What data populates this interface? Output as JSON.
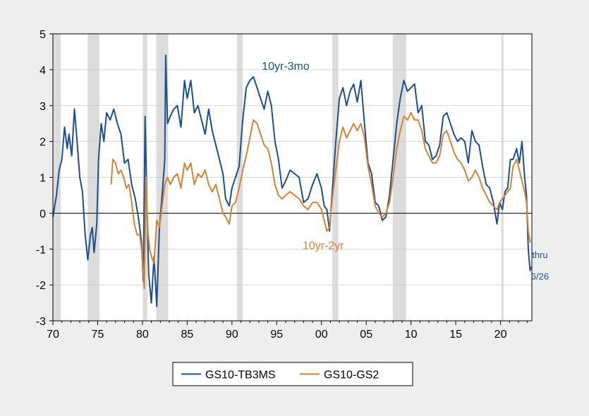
{
  "chart_data": {
    "type": "line",
    "xlim": [
      1970,
      2023.5
    ],
    "ylim": [
      -3,
      5
    ],
    "y_ticks": [
      -3,
      -2,
      -1,
      0,
      1,
      2,
      3,
      4,
      5
    ],
    "y_tick_labels": [
      "-3",
      "-2",
      "-1",
      "0",
      "1",
      "2",
      "3",
      "4",
      "5"
    ],
    "x_ticks": [
      1970,
      1975,
      1980,
      1985,
      1990,
      1995,
      2000,
      2005,
      2010,
      2015,
      2020
    ],
    "x_tick_labels": [
      "70",
      "75",
      "80",
      "85",
      "90",
      "95",
      "00",
      "05",
      "10",
      "15",
      "20"
    ],
    "grid": true,
    "legend_position": "bottom-center",
    "recessions": [
      [
        1969.92,
        1970.88
      ],
      [
        1973.88,
        1975.21
      ],
      [
        1980.04,
        1980.54
      ],
      [
        1981.54,
        1982.88
      ],
      [
        1990.54,
        1991.21
      ],
      [
        2001.21,
        2001.88
      ],
      [
        2007.96,
        2009.46
      ],
      [
        2020.08,
        2020.33
      ]
    ],
    "series": [
      {
        "name": "GS10-TB3MS",
        "color": "#1f4e8c",
        "x": [
          1970.0,
          1970.4,
          1970.7,
          1971.0,
          1971.3,
          1971.6,
          1971.8,
          1972.1,
          1972.4,
          1972.7,
          1973.0,
          1973.3,
          1973.6,
          1973.9,
          1974.2,
          1974.4,
          1974.6,
          1974.9,
          1975.1,
          1975.4,
          1975.7,
          1976.0,
          1976.4,
          1976.8,
          1977.2,
          1977.6,
          1978.0,
          1978.4,
          1978.8,
          1979.2,
          1979.6,
          1979.9,
          1980.1,
          1980.3,
          1980.5,
          1980.7,
          1981.0,
          1981.3,
          1981.6,
          1981.9,
          1982.2,
          1982.5,
          1982.6,
          1982.8,
          1983.1,
          1983.5,
          1983.9,
          1984.3,
          1984.7,
          1985.0,
          1985.4,
          1985.8,
          1986.2,
          1986.6,
          1987.0,
          1987.4,
          1987.8,
          1988.2,
          1988.6,
          1989.0,
          1989.3,
          1989.7,
          1990.0,
          1990.4,
          1990.8,
          1991.2,
          1991.6,
          1992.0,
          1992.4,
          1992.8,
          1993.2,
          1993.6,
          1994.0,
          1994.4,
          1994.8,
          1995.2,
          1995.6,
          1996.0,
          1996.5,
          1997.0,
          1997.5,
          1998.0,
          1998.5,
          1999.0,
          1999.5,
          2000.0,
          2000.3,
          2000.6,
          2000.9,
          2001.2,
          2001.6,
          2002.0,
          2002.4,
          2002.8,
          2003.2,
          2003.6,
          2004.0,
          2004.4,
          2004.8,
          2005.2,
          2005.6,
          2006.0,
          2006.4,
          2006.8,
          2007.2,
          2007.6,
          2008.0,
          2008.4,
          2008.8,
          2009.2,
          2009.6,
          2010.0,
          2010.4,
          2010.8,
          2011.2,
          2011.6,
          2012.0,
          2012.4,
          2012.8,
          2013.2,
          2013.6,
          2014.0,
          2014.4,
          2014.8,
          2015.2,
          2015.6,
          2016.0,
          2016.4,
          2016.8,
          2017.2,
          2017.6,
          2018.0,
          2018.4,
          2018.8,
          2019.2,
          2019.6,
          2019.9,
          2020.2,
          2020.5,
          2020.8,
          2021.1,
          2021.4,
          2021.8,
          2022.1,
          2022.4,
          2022.7,
          2022.9,
          2023.1,
          2023.3,
          2023.4
        ],
        "values": [
          -0.1,
          0.5,
          1.2,
          1.5,
          2.4,
          1.8,
          2.2,
          1.6,
          2.9,
          2.0,
          1.0,
          0.6,
          -0.6,
          -1.3,
          -0.6,
          -0.4,
          -1.1,
          -0.3,
          1.5,
          2.5,
          2.0,
          2.8,
          2.6,
          2.9,
          2.5,
          2.2,
          1.4,
          1.5,
          0.8,
          0.4,
          -0.2,
          -0.8,
          -1.9,
          2.7,
          0.2,
          -1.7,
          -2.5,
          -1.2,
          -2.6,
          -0.4,
          0.5,
          1.5,
          4.4,
          2.5,
          2.7,
          2.9,
          3.0,
          2.4,
          3.7,
          3.2,
          3.7,
          2.8,
          3.0,
          2.6,
          2.2,
          2.9,
          2.3,
          1.9,
          1.5,
          1.1,
          0.4,
          0.2,
          0.7,
          1.0,
          1.3,
          2.6,
          3.5,
          3.7,
          3.8,
          3.5,
          3.2,
          2.9,
          3.4,
          3.0,
          2.0,
          1.5,
          0.7,
          0.9,
          1.2,
          1.1,
          1.0,
          0.3,
          0.4,
          0.8,
          1.1,
          0.7,
          0.2,
          0.1,
          -0.5,
          0.6,
          2.0,
          3.2,
          3.5,
          3.0,
          3.4,
          3.6,
          3.1,
          3.7,
          2.5,
          1.4,
          1.1,
          0.3,
          0.2,
          -0.2,
          -0.1,
          0.5,
          1.5,
          2.5,
          3.2,
          3.7,
          3.4,
          3.5,
          3.6,
          2.8,
          3.0,
          2.0,
          1.9,
          1.5,
          1.6,
          1.9,
          2.7,
          2.8,
          2.5,
          2.2,
          2.0,
          2.1,
          2.0,
          1.4,
          2.3,
          2.0,
          1.9,
          1.3,
          0.8,
          0.7,
          0.3,
          -0.3,
          0.3,
          0.1,
          0.6,
          0.7,
          1.5,
          1.5,
          1.8,
          1.4,
          2.0,
          1.0,
          0.5,
          -1.0,
          -1.6,
          -1.5
        ]
      },
      {
        "name": "GS10-GS2",
        "color": "#d4823a",
        "x": [
          1976.5,
          1976.7,
          1977.0,
          1977.3,
          1977.6,
          1977.9,
          1978.2,
          1978.5,
          1978.8,
          1979.1,
          1979.4,
          1979.7,
          1980.0,
          1980.2,
          1980.4,
          1980.6,
          1980.8,
          1981.0,
          1981.3,
          1981.6,
          1981.9,
          1982.2,
          1982.5,
          1982.8,
          1983.1,
          1983.5,
          1983.9,
          1984.3,
          1984.7,
          1985.0,
          1985.4,
          1985.8,
          1986.2,
          1986.6,
          1987.0,
          1987.4,
          1987.8,
          1988.2,
          1988.6,
          1989.0,
          1989.3,
          1989.7,
          1990.0,
          1990.4,
          1990.8,
          1991.2,
          1991.6,
          1992.0,
          1992.4,
          1992.8,
          1993.2,
          1993.6,
          1994.0,
          1994.4,
          1994.8,
          1995.2,
          1995.6,
          1996.0,
          1996.5,
          1997.0,
          1997.5,
          1998.0,
          1998.5,
          1999.0,
          1999.5,
          2000.0,
          2000.3,
          2000.6,
          2000.9,
          2001.2,
          2001.6,
          2002.0,
          2002.4,
          2002.8,
          2003.2,
          2003.6,
          2004.0,
          2004.4,
          2004.8,
          2005.2,
          2005.6,
          2006.0,
          2006.4,
          2006.8,
          2007.2,
          2007.6,
          2008.0,
          2008.4,
          2008.8,
          2009.2,
          2009.6,
          2010.0,
          2010.4,
          2010.8,
          2011.2,
          2011.6,
          2012.0,
          2012.4,
          2012.8,
          2013.2,
          2013.6,
          2014.0,
          2014.4,
          2014.8,
          2015.2,
          2015.6,
          2016.0,
          2016.4,
          2016.8,
          2017.2,
          2017.6,
          2018.0,
          2018.4,
          2018.8,
          2019.2,
          2019.6,
          2019.9,
          2020.2,
          2020.5,
          2020.8,
          2021.1,
          2021.4,
          2021.8,
          2022.1,
          2022.4,
          2022.7,
          2022.9,
          2023.1,
          2023.3,
          2023.4
        ],
        "values": [
          0.8,
          1.5,
          1.4,
          1.1,
          1.2,
          1.0,
          0.7,
          0.8,
          0.3,
          -0.3,
          -0.6,
          -0.6,
          -1.2,
          -2.1,
          1.0,
          -0.5,
          -1.0,
          -1.2,
          -1.4,
          -0.2,
          -0.4,
          0.2,
          0.8,
          1.0,
          0.8,
          1.0,
          1.1,
          0.7,
          1.4,
          1.2,
          1.4,
          0.8,
          1.1,
          1.0,
          1.2,
          0.8,
          0.6,
          0.8,
          0.4,
          0.0,
          -0.1,
          -0.3,
          0.2,
          0.3,
          0.7,
          1.2,
          1.6,
          2.1,
          2.6,
          2.5,
          2.2,
          1.9,
          1.8,
          1.4,
          0.8,
          0.5,
          0.4,
          0.5,
          0.6,
          0.5,
          0.4,
          0.2,
          0.1,
          0.3,
          0.3,
          0.1,
          -0.2,
          -0.5,
          -0.4,
          0.4,
          1.2,
          2.0,
          2.4,
          2.1,
          2.3,
          2.5,
          2.3,
          2.5,
          2.1,
          1.3,
          0.8,
          0.2,
          0.0,
          -0.1,
          0.0,
          0.3,
          1.0,
          1.8,
          2.3,
          2.7,
          2.6,
          2.8,
          2.6,
          2.6,
          2.3,
          1.8,
          1.6,
          1.4,
          1.4,
          1.6,
          2.2,
          2.3,
          2.0,
          1.7,
          1.5,
          1.4,
          1.2,
          0.9,
          1.0,
          1.2,
          1.0,
          0.7,
          0.5,
          0.3,
          0.2,
          0.1,
          0.3,
          0.4,
          0.5,
          0.6,
          0.7,
          1.3,
          1.5,
          1.2,
          0.9,
          0.6,
          0.3,
          -0.5,
          -0.8,
          -0.8
        ]
      }
    ],
    "annotations": [
      {
        "text": "10yr-3mo",
        "x": 1996.0,
        "y": 4.0,
        "color": "#1f4e8c"
      },
      {
        "text": "10yr-2yr",
        "x": 2000.2,
        "y": -1.0,
        "color": "#d4823a"
      },
      {
        "text": "thru",
        "x": 2024.4,
        "y": -1.25,
        "color": "#1f4e8c"
      },
      {
        "text": "6/26",
        "x": 2024.4,
        "y": -1.85,
        "color": "#1f4e8c"
      }
    ]
  }
}
